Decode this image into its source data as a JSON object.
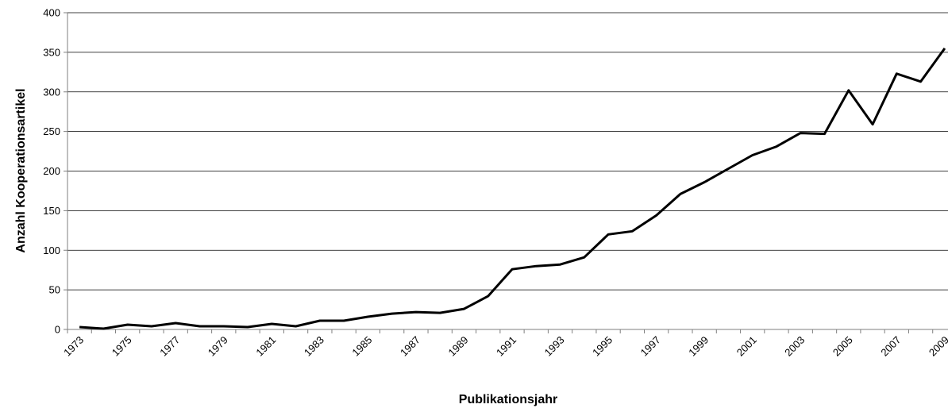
{
  "chart_data": {
    "type": "line",
    "title": "",
    "xlabel": "Publikationsjahr",
    "ylabel": "Anzahl Kooperationsartikel",
    "ylim": [
      0,
      400
    ],
    "yticks": [
      0,
      50,
      100,
      150,
      200,
      250,
      300,
      350,
      400
    ],
    "xtick_labels": [
      "1973",
      "1975",
      "1977",
      "1979",
      "1981",
      "1983",
      "1985",
      "1987",
      "1989",
      "1991",
      "1993",
      "1995",
      "1997",
      "1999",
      "2001",
      "2003",
      "2005",
      "2007",
      "2009"
    ],
    "grid": "horizontal",
    "legend": "none",
    "line_color": "#000000",
    "series": [
      {
        "x": [
          1973,
          1974,
          1975,
          1976,
          1977,
          1978,
          1979,
          1980,
          1981,
          1982,
          1983,
          1984,
          1985,
          1986,
          1987,
          1988,
          1989,
          1990,
          1991,
          1992,
          1993,
          1994,
          1995,
          1996,
          1997,
          1998,
          1999,
          2000,
          2001,
          2002,
          2003,
          2004,
          2005,
          2006,
          2007,
          2008,
          2009
        ],
        "values": [
          3,
          1,
          6,
          4,
          8,
          4,
          4,
          3,
          7,
          4,
          11,
          11,
          16,
          20,
          22,
          21,
          26,
          42,
          76,
          80,
          82,
          91,
          120,
          124,
          144,
          171,
          186,
          203,
          220,
          231,
          248,
          247,
          302,
          259,
          323,
          313,
          355
        ]
      }
    ]
  }
}
